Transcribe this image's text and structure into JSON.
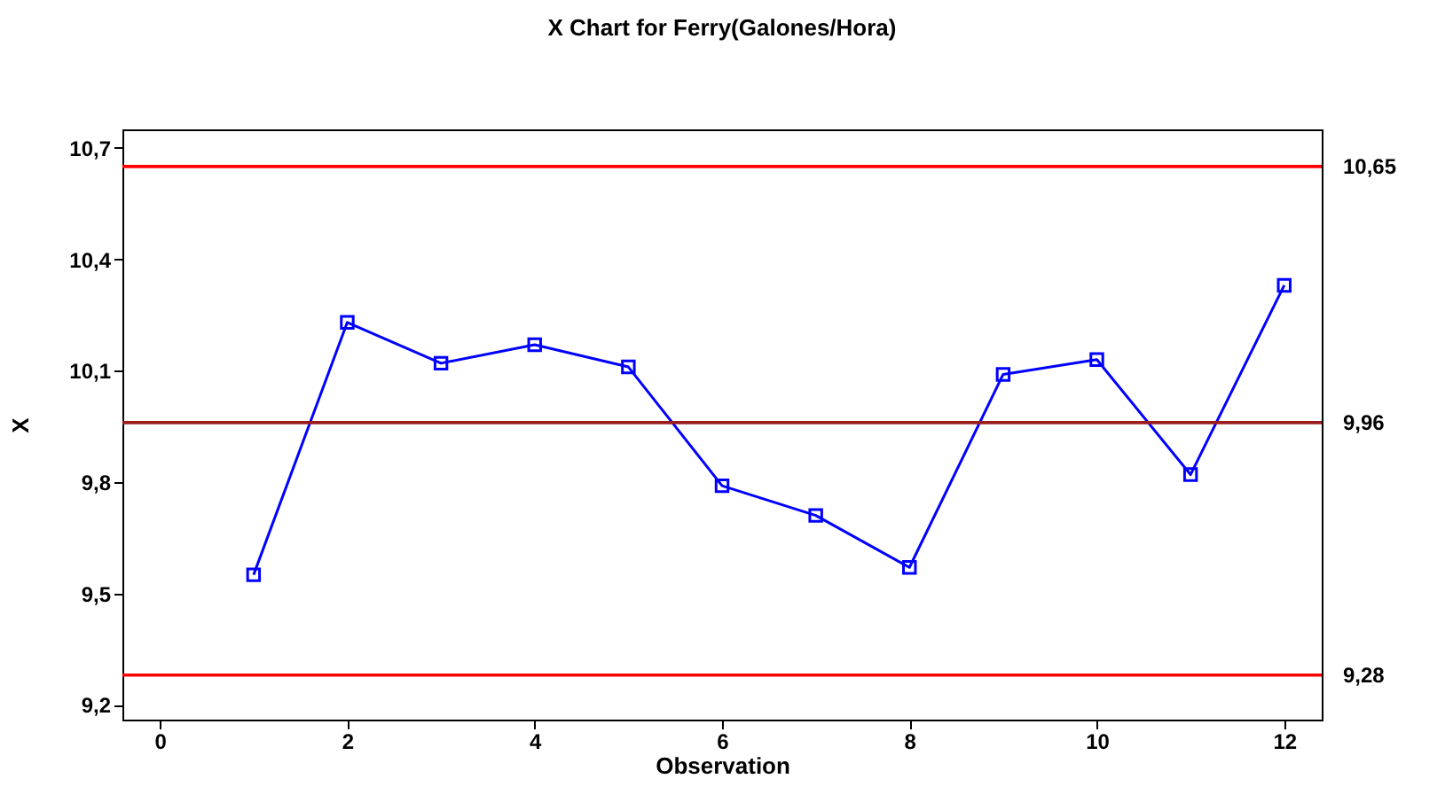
{
  "chart_data": {
    "type": "line",
    "title": "X Chart for Ferry(Galones/Hora)",
    "xlabel": "Observation",
    "ylabel": "X",
    "x": [
      1,
      2,
      3,
      4,
      5,
      6,
      7,
      8,
      9,
      10,
      11,
      12
    ],
    "series": [
      {
        "color": "#0000ff",
        "values": [
          9.55,
          10.23,
          10.12,
          10.17,
          10.11,
          9.79,
          9.71,
          9.57,
          10.09,
          10.13,
          9.82,
          10.33
        ]
      }
    ],
    "marker": "square",
    "line_style": "solid",
    "grid": false,
    "xlim": [
      -0.4,
      12.4
    ],
    "xticks": [
      0,
      2,
      4,
      6,
      8,
      10,
      12
    ],
    "ylim": [
      9.16,
      10.75
    ],
    "yticks": [
      {
        "value": 9.2,
        "label": "9,2"
      },
      {
        "value": 9.5,
        "label": "9,5"
      },
      {
        "value": 9.8,
        "label": "9,8"
      },
      {
        "value": 10.1,
        "label": "10,1"
      },
      {
        "value": 10.4,
        "label": "10,4"
      },
      {
        "value": 10.7,
        "label": "10,7"
      }
    ],
    "ref_lines": [
      {
        "axis": "y",
        "value": 10.65,
        "label": "10,65",
        "color": "#ff0000"
      },
      {
        "axis": "y",
        "value": 9.96,
        "label": "9,96",
        "color": "#9b1c1c"
      },
      {
        "axis": "y",
        "value": 9.28,
        "label": "9,28",
        "color": "#ff0000"
      }
    ]
  }
}
